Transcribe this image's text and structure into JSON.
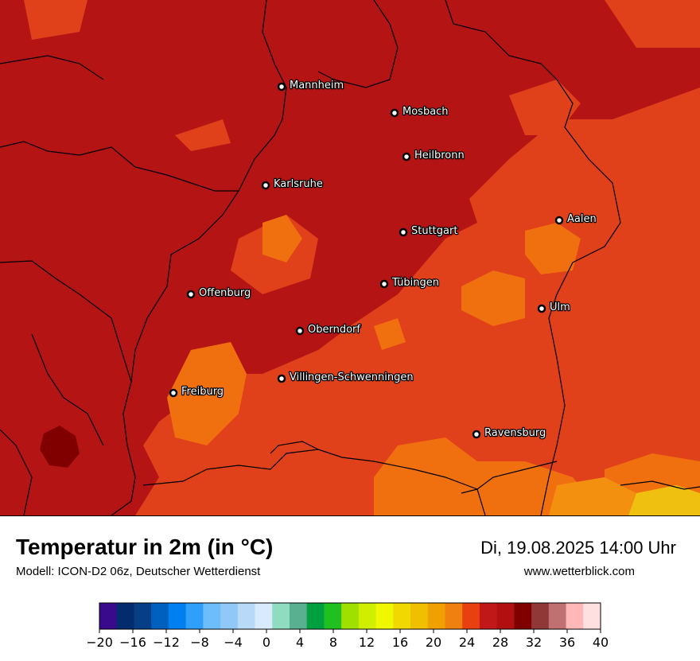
{
  "map": {
    "cities": [
      {
        "name": "Mannheim"
      },
      {
        "name": "Mosbach"
      },
      {
        "name": "Heilbronn"
      },
      {
        "name": "Karlsruhe"
      },
      {
        "name": "Aalen"
      },
      {
        "name": "Stuttgart"
      },
      {
        "name": "Offenburg"
      },
      {
        "name": "Tübingen"
      },
      {
        "name": "Ulm"
      },
      {
        "name": "Oberndorf"
      },
      {
        "name": "Villingen-Schwenningen"
      },
      {
        "name": "Freiburg"
      },
      {
        "name": "Ravensburg"
      }
    ]
  },
  "header": {
    "title": "Temperatur in 2m (in °C)",
    "subtitle": "Modell: ICON-D2 06z, Deutscher Wetterdienst",
    "datetime": "Di, 19.08.2025 14:00 Uhr",
    "website": "www.wetterblick.com"
  },
  "legend": {
    "tick_labels": [
      "−20",
      "−16",
      "−12",
      "−8",
      "−4",
      "0",
      "4",
      "8",
      "12",
      "16",
      "20",
      "24",
      "28",
      "32",
      "36",
      "40"
    ],
    "colors": [
      "#3a0a8c",
      "#032c6e",
      "#063f86",
      "#0060c0",
      "#0080f0",
      "#2ea0fb",
      "#6dbcfc",
      "#90c8f8",
      "#b8daf8",
      "#d8eafb",
      "#90dcc0",
      "#58b090",
      "#00a040",
      "#20c020",
      "#a0e000",
      "#d0ef00",
      "#f0f800",
      "#f0d800",
      "#f0c000",
      "#f0a000",
      "#f08010",
      "#e84010",
      "#c01818",
      "#b01010",
      "#800000",
      "#903838",
      "#c07070",
      "#ffb8b8",
      "#ffe0e0"
    ]
  },
  "colors": {
    "map_base": "#b41414",
    "warm_orange": "#e0401a",
    "orange": "#f07010",
    "light_orange": "#f49010",
    "hot_yellow": "#f0c010",
    "dark_red": "#800000"
  }
}
